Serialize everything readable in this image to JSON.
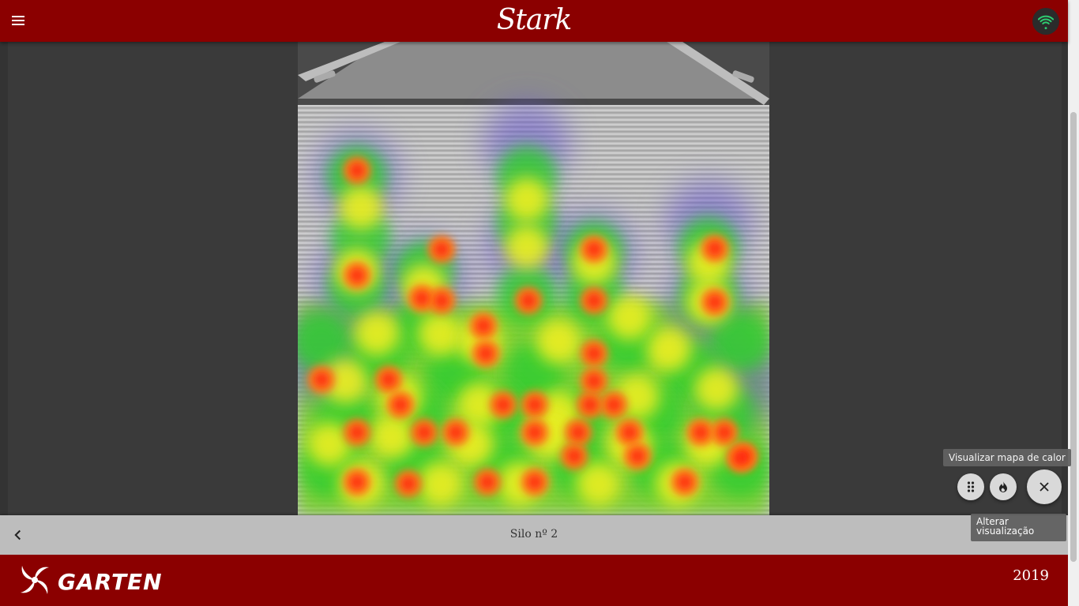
{
  "header": {
    "brand": "Stark",
    "menu_icon": "menu-icon",
    "connection_icon": "wifi-icon",
    "connection_color": "#2ecc71"
  },
  "content": {
    "silo_title": "Silo nº 2",
    "back_icon": "chevron-left-icon"
  },
  "controls": {
    "tooltip_heatmap": "Visualizar mapa de calor",
    "tooltip_toggle": "Alterar visualização",
    "icons": [
      "dots-grid-icon",
      "flame-icon",
      "close-icon"
    ]
  },
  "footer": {
    "logo_text": "GARTEN",
    "year": "2019"
  },
  "colors": {
    "header_bg": "#8b0000",
    "footer_bg": "#8b0000",
    "bottom_bar_bg": "#bdbdbd",
    "main_bg": "#3a3a3a"
  }
}
